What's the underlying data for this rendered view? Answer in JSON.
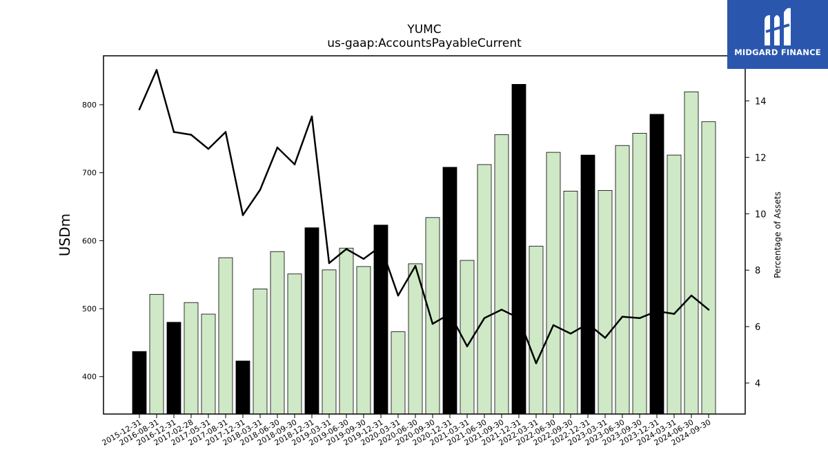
{
  "chart_data": {
    "type": "bar",
    "title": "YUMC",
    "subtitle": "us-gaap:AccountsPayableCurrent",
    "ylabel": "USDm",
    "y2label": "Percentage of Assets",
    "ylim": [
      345,
      872
    ],
    "y2lim": [
      2.9,
      15.6
    ],
    "yticks": [
      400,
      500,
      600,
      700,
      800
    ],
    "y2ticks": [
      4,
      6,
      8,
      10,
      12,
      14
    ],
    "categories": [
      "2015-12-31",
      "2016-08-31",
      "2016-12-31",
      "2017-02-28",
      "2017-05-31",
      "2017-08-31",
      "2017-12-31",
      "2018-03-31",
      "2018-06-30",
      "2018-09-30",
      "2018-12-31",
      "2019-03-31",
      "2019-06-30",
      "2019-09-30",
      "2019-12-31",
      "2020-03-31",
      "2020-06-30",
      "2020-09-30",
      "2020-12-31",
      "2021-03-31",
      "2021-06-30",
      "2021-09-30",
      "2021-12-31",
      "2022-03-31",
      "2022-06-30",
      "2022-09-30",
      "2022-12-31",
      "2023-03-31",
      "2023-06-30",
      "2023-09-30",
      "2023-12-31",
      "2024-03-31",
      "2024-06-30",
      "2024-09-30"
    ],
    "series": [
      {
        "type": "bar",
        "values": [
          437,
          521,
          480,
          509,
          492,
          575,
          423,
          529,
          584,
          551,
          619,
          557,
          589,
          562,
          623,
          466,
          566,
          634,
          708,
          571,
          712,
          756,
          830,
          592,
          730,
          673,
          726,
          674,
          740,
          758,
          786,
          726,
          819,
          775
        ],
        "year_end": [
          true,
          false,
          true,
          false,
          false,
          false,
          true,
          false,
          false,
          false,
          true,
          false,
          false,
          false,
          true,
          false,
          false,
          false,
          true,
          false,
          false,
          false,
          true,
          false,
          false,
          false,
          true,
          false,
          false,
          false,
          true,
          false,
          false,
          false
        ]
      },
      {
        "type": "line",
        "axis": "right",
        "values": [
          13.7,
          15.1,
          12.9,
          12.8,
          12.3,
          12.9,
          9.95,
          10.85,
          12.35,
          11.75,
          13.45,
          8.25,
          8.75,
          8.4,
          8.85,
          7.1,
          8.15,
          6.1,
          6.45,
          5.3,
          6.3,
          6.6,
          6.3,
          4.7,
          6.05,
          5.75,
          6.1,
          5.6,
          6.35,
          6.3,
          6.55,
          6.45,
          7.1,
          6.6
        ]
      }
    ],
    "colors": {
      "bar_year_end": "#000000",
      "bar_quarter": "#cfe9c6",
      "bar_edge": "#000000",
      "line": "#000000"
    }
  },
  "logo": {
    "text": "MIDGARD FINANCE",
    "color": "#2a57ad"
  }
}
